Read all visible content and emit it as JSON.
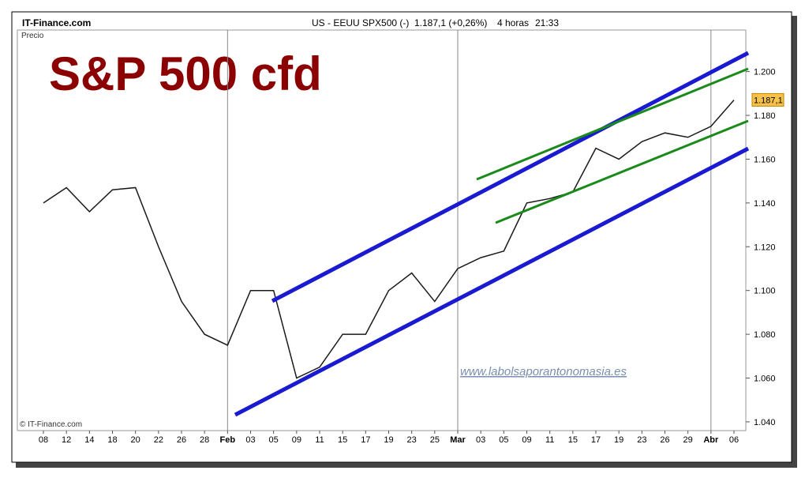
{
  "header": {
    "site": "IT-Finance.com",
    "symbol": "US - EEUU SPX500 (-)",
    "quote": "1.187,1 (+0,26%)",
    "period": "4 horas",
    "time": "21:33"
  },
  "chart_data": {
    "type": "line",
    "title": "S&P 500 cfd",
    "y_label": "Precio",
    "copyright": "© IT-Finance.com",
    "watermark": "www.labolsaporantonomasia.es",
    "categories": [
      "08",
      "12",
      "14",
      "18",
      "20",
      "22",
      "26",
      "28",
      "Feb",
      "03",
      "05",
      "09",
      "11",
      "15",
      "17",
      "19",
      "23",
      "25",
      "Mar",
      "03",
      "05",
      "09",
      "11",
      "15",
      "17",
      "19",
      "23",
      "26",
      "29",
      "Abr",
      "06"
    ],
    "series": [
      {
        "name": "SPX500",
        "color": "#1a1a1a",
        "values": [
          1140,
          1147,
          1136,
          1146,
          1147,
          1120,
          1095,
          1080,
          1075,
          1100,
          1100,
          1060,
          1065,
          1080,
          1080,
          1100,
          1108,
          1095,
          1110,
          1115,
          1118,
          1140,
          1142,
          1145,
          1165,
          1160,
          1168,
          1172,
          1170,
          1175,
          1187
        ]
      }
    ],
    "last_price": {
      "value": 1187.1,
      "label": "1.187,1"
    },
    "ylim": [
      1036,
      1219
    ],
    "yticks": [
      {
        "value": 1040,
        "label": "1.040"
      },
      {
        "value": 1060,
        "label": "1.060"
      },
      {
        "value": 1080,
        "label": "1.080"
      },
      {
        "value": 1100,
        "label": "1.100"
      },
      {
        "value": 1120,
        "label": "1.120"
      },
      {
        "value": 1140,
        "label": "1.140"
      },
      {
        "value": 1160,
        "label": "1.160"
      },
      {
        "value": 1180,
        "label": "1.180"
      },
      {
        "value": 1200,
        "label": "1.200"
      }
    ],
    "grid": false
  }
}
